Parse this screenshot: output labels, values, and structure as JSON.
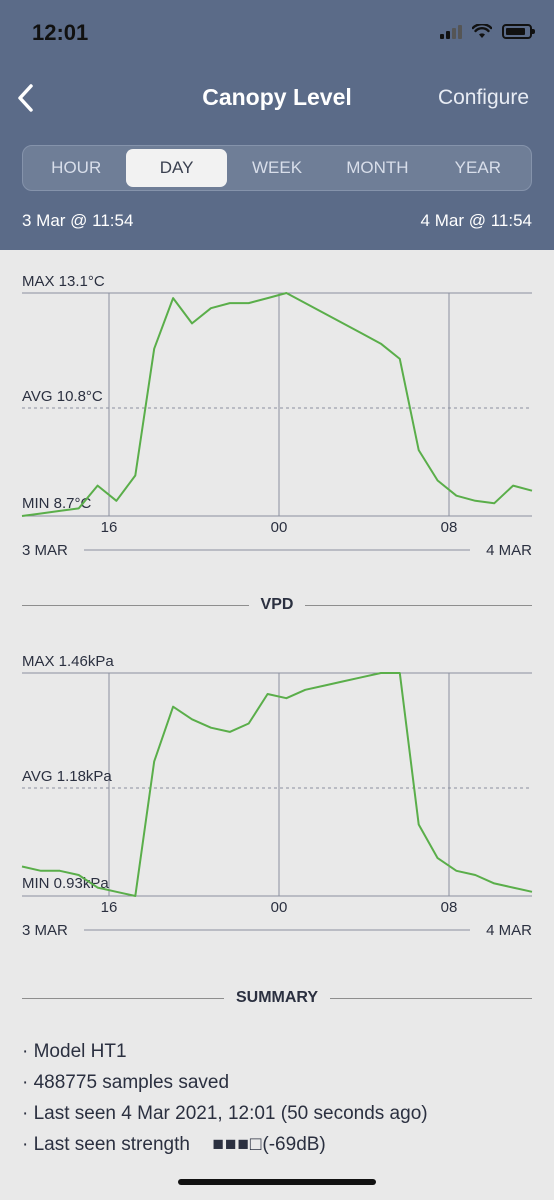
{
  "status": {
    "time": "12:01"
  },
  "nav": {
    "title": "Canopy Level",
    "configure_label": "Configure"
  },
  "tabs": [
    {
      "label": "HOUR"
    },
    {
      "label": "DAY",
      "active": true
    },
    {
      "label": "WEEK"
    },
    {
      "label": "MONTH"
    },
    {
      "label": "YEAR"
    }
  ],
  "range": {
    "start": "3 Mar @ 11:54",
    "end": "4 Mar @ 11:54"
  },
  "colors": {
    "header": "#5b6b88",
    "line": "#5aae4a",
    "background": "#e9e9e9"
  },
  "temp_chart": {
    "max_label": "MAX 13.1°C",
    "avg_label": "AVG 10.8°C",
    "min_label": "MIN 8.7°C",
    "x_ticks": [
      "16",
      "00",
      "08"
    ],
    "start_label": "3 MAR",
    "end_label": "4 MAR"
  },
  "vpd_section": {
    "title": "VPD"
  },
  "vpd_chart": {
    "max_label": "MAX 1.46kPa",
    "avg_label": "AVG 1.18kPa",
    "min_label": "MIN 0.93kPa",
    "x_ticks": [
      "16",
      "00",
      "08"
    ],
    "start_label": "3 MAR",
    "end_label": "4 MAR"
  },
  "summary": {
    "title": "SUMMARY",
    "items": [
      "· Model HT1",
      "· 488775 samples saved",
      "· Last seen 4 Mar 2021, 12:01 (50 seconds ago)",
      "· Last seen strength"
    ],
    "strength_bars": "■■■□",
    "strength_value": "(-69dB)"
  },
  "chart_data": [
    {
      "type": "line",
      "title": "",
      "ylabel": "°C",
      "ylim": [
        8.7,
        13.1
      ],
      "x": [
        "3 Mar 11:54",
        "13:00",
        "14:00",
        "15:00",
        "16:00",
        "17:00",
        "17:30",
        "18:00",
        "18:30",
        "19:00",
        "20:00",
        "21:00",
        "22:00",
        "23:00",
        "00:00",
        "01:00",
        "02:00",
        "03:00",
        "04:00",
        "05:00",
        "06:00",
        "06:30",
        "07:00",
        "08:00",
        "09:00",
        "10:00",
        "11:00",
        "4 Mar 11:54"
      ],
      "series": [
        {
          "values": [
            8.7,
            8.75,
            8.8,
            8.85,
            9.3,
            9.0,
            9.5,
            12.0,
            13.0,
            12.5,
            12.8,
            12.9,
            12.9,
            13.0,
            13.1,
            12.9,
            12.7,
            12.5,
            12.3,
            12.1,
            11.8,
            10.0,
            9.4,
            9.1,
            9.0,
            8.95,
            9.3,
            9.2
          ]
        }
      ]
    },
    {
      "type": "line",
      "title": "VPD",
      "ylabel": "kPa",
      "ylim": [
        0.93,
        1.46
      ],
      "x": [
        "3 Mar 11:54",
        "13:00",
        "14:00",
        "15:00",
        "16:00",
        "17:00",
        "17:30",
        "18:00",
        "18:30",
        "19:00",
        "20:00",
        "21:00",
        "22:00",
        "23:00",
        "00:00",
        "01:00",
        "02:00",
        "03:00",
        "04:00",
        "05:00",
        "06:00",
        "06:30",
        "07:00",
        "08:00",
        "09:00",
        "10:00",
        "11:00",
        "4 Mar 11:54"
      ],
      "series": [
        {
          "values": [
            1.0,
            0.99,
            0.99,
            0.98,
            0.95,
            0.94,
            0.93,
            1.25,
            1.38,
            1.35,
            1.33,
            1.32,
            1.34,
            1.41,
            1.4,
            1.42,
            1.43,
            1.44,
            1.45,
            1.46,
            1.46,
            1.1,
            1.02,
            0.99,
            0.98,
            0.96,
            0.95,
            0.94
          ]
        }
      ]
    }
  ]
}
